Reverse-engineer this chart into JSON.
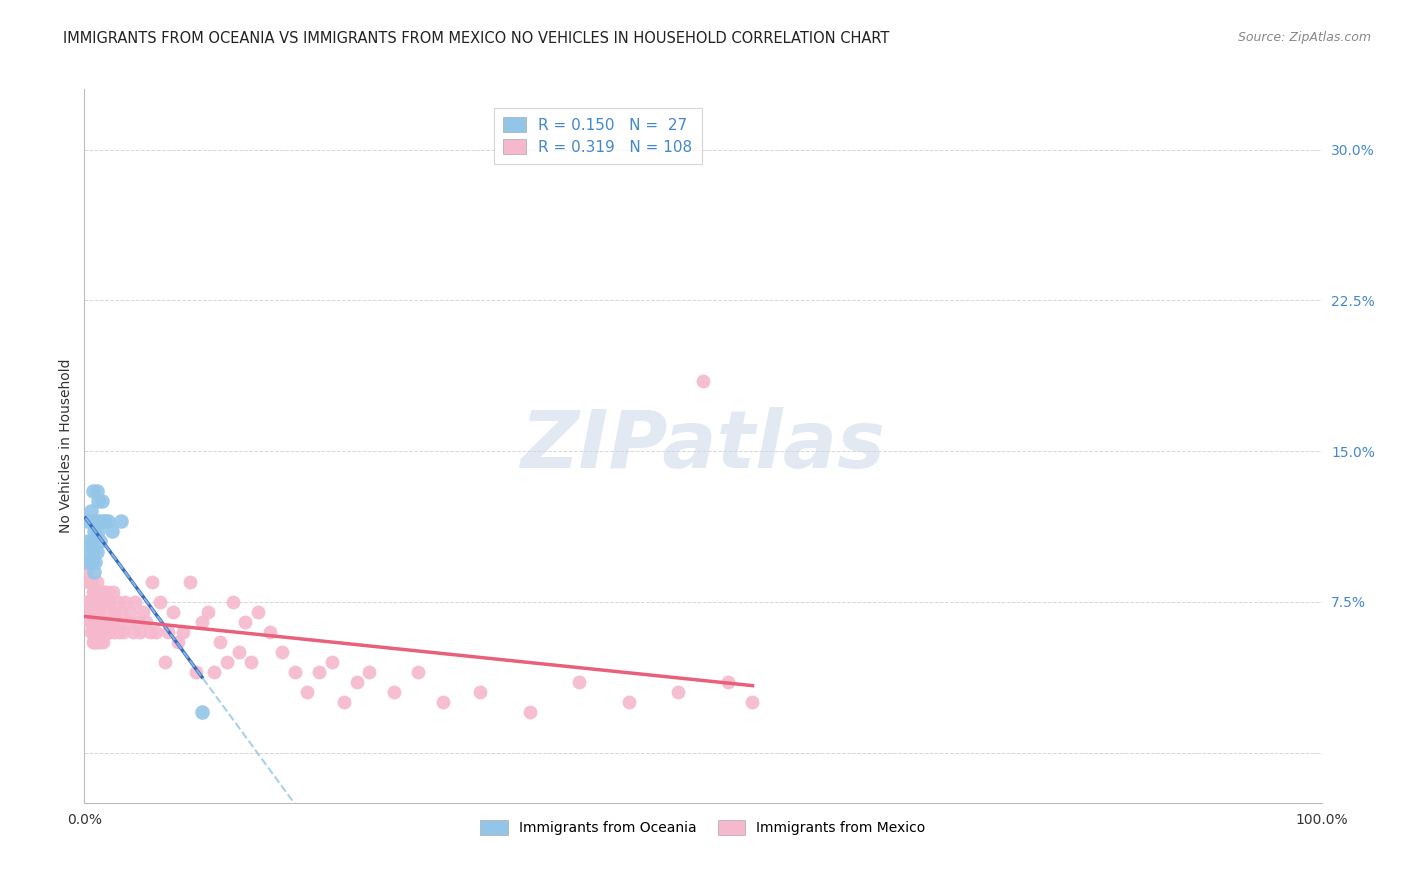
{
  "title": "IMMIGRANTS FROM OCEANIA VS IMMIGRANTS FROM MEXICO NO VEHICLES IN HOUSEHOLD CORRELATION CHART",
  "source": "Source: ZipAtlas.com",
  "ylabel": "No Vehicles in Household",
  "yticks": [
    0.0,
    0.075,
    0.15,
    0.225,
    0.3
  ],
  "ytick_labels": [
    "",
    "7.5%",
    "15.0%",
    "22.5%",
    "30.0%"
  ],
  "xlim": [
    0.0,
    1.0
  ],
  "ylim": [
    -0.025,
    0.33
  ],
  "watermark": "ZIPatlas",
  "legend_r_oceania": "R = 0.150",
  "legend_n_oceania": "N =  27",
  "legend_r_mexico": "R = 0.319",
  "legend_n_mexico": "N = 108",
  "oceania_color": "#93c5e8",
  "mexico_color": "#f5b8cc",
  "oceania_line_color": "#3a6abf",
  "mexico_line_color": "#e8607a",
  "blue_dashed_color": "#93c5e8",
  "background_color": "#ffffff",
  "grid_color": "#cccccc",
  "oceania_x": [
    0.001,
    0.002,
    0.003,
    0.004,
    0.005,
    0.005,
    0.006,
    0.006,
    0.007,
    0.007,
    0.008,
    0.008,
    0.009,
    0.009,
    0.01,
    0.01,
    0.011,
    0.011,
    0.012,
    0.013,
    0.014,
    0.015,
    0.017,
    0.019,
    0.022,
    0.03,
    0.095
  ],
  "oceania_y": [
    0.095,
    0.115,
    0.105,
    0.1,
    0.12,
    0.095,
    0.105,
    0.095,
    0.13,
    0.1,
    0.11,
    0.09,
    0.115,
    0.095,
    0.13,
    0.1,
    0.125,
    0.11,
    0.115,
    0.105,
    0.125,
    0.115,
    0.115,
    0.115,
    0.11,
    0.115,
    0.02
  ],
  "mexico_x": [
    0.001,
    0.002,
    0.002,
    0.003,
    0.003,
    0.004,
    0.004,
    0.005,
    0.005,
    0.005,
    0.006,
    0.006,
    0.006,
    0.007,
    0.007,
    0.007,
    0.008,
    0.008,
    0.008,
    0.009,
    0.009,
    0.009,
    0.01,
    0.01,
    0.01,
    0.011,
    0.011,
    0.011,
    0.012,
    0.012,
    0.013,
    0.013,
    0.013,
    0.014,
    0.014,
    0.015,
    0.015,
    0.015,
    0.016,
    0.016,
    0.017,
    0.017,
    0.018,
    0.018,
    0.019,
    0.019,
    0.02,
    0.02,
    0.021,
    0.022,
    0.023,
    0.024,
    0.025,
    0.026,
    0.027,
    0.028,
    0.03,
    0.031,
    0.033,
    0.035,
    0.037,
    0.039,
    0.041,
    0.043,
    0.045,
    0.047,
    0.05,
    0.053,
    0.055,
    0.058,
    0.061,
    0.065,
    0.068,
    0.072,
    0.076,
    0.08,
    0.085,
    0.09,
    0.095,
    0.1,
    0.105,
    0.11,
    0.115,
    0.12,
    0.125,
    0.13,
    0.135,
    0.14,
    0.15,
    0.16,
    0.17,
    0.18,
    0.19,
    0.2,
    0.21,
    0.22,
    0.23,
    0.25,
    0.27,
    0.29,
    0.32,
    0.36,
    0.4,
    0.44,
    0.48,
    0.5,
    0.52,
    0.54
  ],
  "mexico_y": [
    0.075,
    0.09,
    0.075,
    0.07,
    0.085,
    0.075,
    0.065,
    0.085,
    0.07,
    0.06,
    0.075,
    0.065,
    0.06,
    0.08,
    0.065,
    0.055,
    0.08,
    0.065,
    0.055,
    0.075,
    0.065,
    0.055,
    0.085,
    0.07,
    0.055,
    0.08,
    0.07,
    0.06,
    0.075,
    0.065,
    0.08,
    0.065,
    0.055,
    0.075,
    0.06,
    0.08,
    0.065,
    0.055,
    0.075,
    0.06,
    0.08,
    0.065,
    0.075,
    0.06,
    0.08,
    0.06,
    0.075,
    0.06,
    0.07,
    0.065,
    0.08,
    0.06,
    0.07,
    0.065,
    0.075,
    0.06,
    0.07,
    0.06,
    0.075,
    0.065,
    0.07,
    0.06,
    0.075,
    0.065,
    0.06,
    0.07,
    0.065,
    0.06,
    0.085,
    0.06,
    0.075,
    0.045,
    0.06,
    0.07,
    0.055,
    0.06,
    0.085,
    0.04,
    0.065,
    0.07,
    0.04,
    0.055,
    0.045,
    0.075,
    0.05,
    0.065,
    0.045,
    0.07,
    0.06,
    0.05,
    0.04,
    0.03,
    0.04,
    0.045,
    0.025,
    0.035,
    0.04,
    0.03,
    0.04,
    0.025,
    0.03,
    0.02,
    0.035,
    0.025,
    0.03,
    0.185,
    0.035,
    0.025
  ],
  "title_fontsize": 10.5,
  "axis_label_fontsize": 10,
  "tick_fontsize": 10,
  "legend_fontsize": 11
}
